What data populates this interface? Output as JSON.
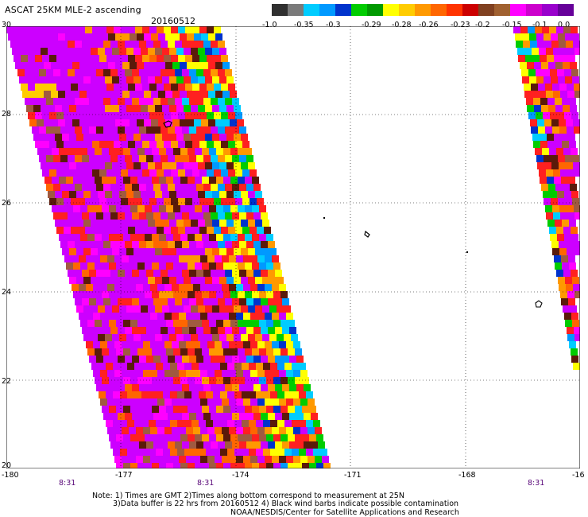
{
  "header": {
    "title": "ASCAT 25KM MLE-2 ascending",
    "date": "20160512"
  },
  "colorbar": {
    "colors": [
      "#303030",
      "#7a7a7a",
      "#00ccff",
      "#0099ff",
      "#0033cc",
      "#00cc00",
      "#009900",
      "#ffff00",
      "#ffcc00",
      "#ff9900",
      "#ff6600",
      "#ff3300",
      "#cc0000",
      "#804020",
      "#a06030",
      "#ff00ff",
      "#cc00cc",
      "#9900cc",
      "#660099"
    ],
    "labels": [
      "-1.0",
      "-0.35",
      "-0.3",
      "-0.29",
      "-0.28",
      "-0.26",
      "-0.23",
      "-0.2",
      "-0.15",
      "-0.1",
      "0.0"
    ]
  },
  "map": {
    "y_axis": {
      "labels": [
        "30",
        "28",
        "26",
        "24",
        "22",
        "20"
      ]
    },
    "x_axis": {
      "labels": [
        "-180",
        "-177",
        "-174",
        "-171",
        "-168",
        "-16"
      ]
    },
    "time_labels": [
      "8:31",
      "8:31",
      "8:31"
    ],
    "lat_range": [
      20,
      30
    ],
    "lon_range": [
      -180,
      -165
    ]
  },
  "footer": {
    "line1": "Note: 1) Times are GMT 2)Times along bottom correspond to measurement at 25N",
    "line2": "3)Data buffer is 22 hrs from 20160512 4) Black wind barbs indicate possible contamination",
    "line3": "NOAA/NESDIS/Center for Satellite Applications and Research"
  }
}
